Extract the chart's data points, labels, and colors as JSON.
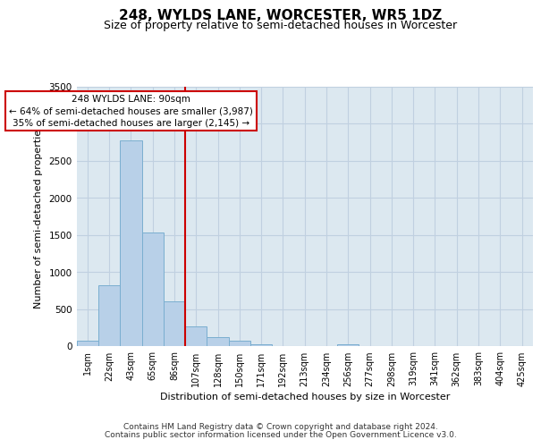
{
  "title": "248, WYLDS LANE, WORCESTER, WR5 1DZ",
  "subtitle": "Size of property relative to semi-detached houses in Worcester",
  "xlabel": "Distribution of semi-detached houses by size in Worcester",
  "ylabel": "Number of semi-detached properties",
  "bar_labels": [
    "1sqm",
    "22sqm",
    "43sqm",
    "65sqm",
    "86sqm",
    "107sqm",
    "128sqm",
    "150sqm",
    "171sqm",
    "192sqm",
    "213sqm",
    "234sqm",
    "256sqm",
    "277sqm",
    "298sqm",
    "319sqm",
    "341sqm",
    "362sqm",
    "383sqm",
    "404sqm",
    "425sqm"
  ],
  "bar_values": [
    70,
    820,
    2780,
    1530,
    600,
    260,
    115,
    75,
    30,
    0,
    0,
    0,
    20,
    0,
    0,
    0,
    0,
    0,
    0,
    0,
    0
  ],
  "bar_color": "#b8d0e8",
  "bar_edgecolor": "#7aaed0",
  "vline_x_index": 4,
  "vline_color": "#cc0000",
  "annotation_line1": "248 WYLDS LANE: 90sqm",
  "annotation_line2": "← 64% of semi-detached houses are smaller (3,987)",
  "annotation_line3": "35% of semi-detached houses are larger (2,145) →",
  "annotation_box_edgecolor": "#cc0000",
  "annotation_box_facecolor": "#ffffff",
  "ylim": [
    0,
    3500
  ],
  "yticks": [
    0,
    500,
    1000,
    1500,
    2000,
    2500,
    3000,
    3500
  ],
  "plot_bg_color": "#dce8f0",
  "background_color": "#ffffff",
  "grid_color": "#c0d0e0",
  "footer_line1": "Contains HM Land Registry data © Crown copyright and database right 2024.",
  "footer_line2": "Contains public sector information licensed under the Open Government Licence v3.0.",
  "title_fontsize": 11,
  "subtitle_fontsize": 9,
  "axis_label_fontsize": 8,
  "tick_fontsize": 7,
  "footer_fontsize": 6.5
}
